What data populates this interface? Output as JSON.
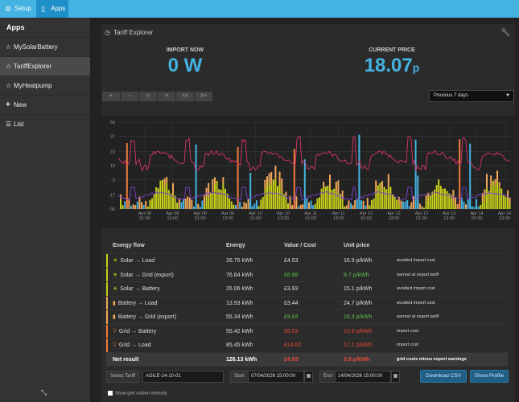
{
  "topbar": {
    "setup_label": "Setup",
    "apps_label": "Apps"
  },
  "sidebar": {
    "heading": "Apps",
    "items": [
      {
        "label": "MySolarBattery",
        "icon": "star-icon"
      },
      {
        "label": "TariffExplorer",
        "icon": "star-icon"
      },
      {
        "label": "MyHeatpump",
        "icon": "star-icon"
      },
      {
        "label": "New",
        "icon": "plus-icon"
      },
      {
        "label": "List",
        "icon": "list-icon"
      }
    ]
  },
  "header": {
    "title": "Tariff Explorer"
  },
  "stats": {
    "import_label": "IMPORT NOW",
    "import_value": "0 W",
    "price_label": "CURRENT PRICE",
    "price_value": "18.07",
    "price_unit": "p"
  },
  "nav_buttons": [
    "+",
    "-",
    "<",
    ">",
    "<<",
    ">>"
  ],
  "period_select": "Previous 7 days",
  "chart_data": {
    "type": "bar",
    "yticks": [
      50,
      37,
      23,
      10,
      -3,
      -17,
      -30
    ],
    "ylim": [
      -30,
      50
    ],
    "xticks": [
      {
        "day": "Apr 08",
        "time": "01:00"
      },
      {
        "day": "Apr 08",
        "time": "13:00"
      },
      {
        "day": "Apr 09",
        "time": "01:00"
      },
      {
        "day": "Apr 09",
        "time": "13:00"
      },
      {
        "day": "Apr 10",
        "time": "01:00"
      },
      {
        "day": "Apr 10",
        "time": "13:00"
      },
      {
        "day": "Apr 11",
        "time": "01:00"
      },
      {
        "day": "Apr 11",
        "time": "13:00"
      },
      {
        "day": "Apr 12",
        "time": "01:00"
      },
      {
        "day": "Apr 12",
        "time": "13:00"
      },
      {
        "day": "Apr 13",
        "time": "01:00"
      },
      {
        "day": "Apr 13",
        "time": "13:00"
      },
      {
        "day": "Apr 14",
        "time": "01:00"
      },
      {
        "day": "Apr 14",
        "time": "13:00"
      }
    ],
    "grid": true,
    "colors": {
      "import_price": "#d6336c",
      "export_price": "#7b3fc7",
      "solar": "#c8d11a",
      "battery": "#f2a859",
      "grid": "#f07a3c",
      "grid_battery": "#44b3e2"
    }
  },
  "table": {
    "headers": [
      "Energy flow",
      "Energy",
      "Value / Cost",
      "Unit price"
    ],
    "rows": [
      {
        "flow": "Solar → Load",
        "icon": "sun-icon",
        "color": "#c8d11a",
        "energy": "26.75 kWh",
        "value": "£4.53",
        "value_color": "#dddddd",
        "unit": "16.9 p/kWh",
        "unit_color": "#dddddd",
        "note": "avoided import cost"
      },
      {
        "flow": "Solar → Grid (export)",
        "icon": "sun-icon",
        "color": "#c8d11a",
        "energy": "76.64 kWh",
        "value": "£6.68",
        "value_color": "#5cc04a",
        "unit": "8.7 p/kWh",
        "unit_color": "#5cc04a",
        "note": "earned at export tariff"
      },
      {
        "flow": "Solar → Battery",
        "icon": "sun-icon",
        "color": "#c8d11a",
        "energy": "26.06 kWh",
        "value": "£3.93",
        "value_color": "#dddddd",
        "unit": "15.1 p/kWh",
        "unit_color": "#dddddd",
        "note": "avoided import cost"
      },
      {
        "flow": "Battery → Load",
        "icon": "battery-icon",
        "color": "#f2a859",
        "energy": "13.93 kWh",
        "value": "£3.44",
        "value_color": "#dddddd",
        "unit": "24.7 p/kWh",
        "unit_color": "#dddddd",
        "note": "avoided import cost"
      },
      {
        "flow": "Battery → Grid (export)",
        "icon": "battery-icon",
        "color": "#f2a859",
        "energy": "55.34 kWh",
        "value": "£9.04",
        "value_color": "#5cc04a",
        "unit": "16.3 p/kWh",
        "unit_color": "#5cc04a",
        "note": "earned at export tariff"
      },
      {
        "flow": "Grid → Battery",
        "icon": "bulb-icon",
        "color": "#f07a3c",
        "energy": "55.42 kWh",
        "value": "£6.03",
        "value_color": "#e84a3a",
        "unit": "10.9 p/kWh",
        "unit_color": "#e84a3a",
        "note": "import cost"
      },
      {
        "flow": "Grid → Load",
        "icon": "bulb-icon",
        "color": "#f07a3c",
        "energy": "85.45 kWh",
        "value": "£14.62",
        "value_color": "#e84a3a",
        "unit": "17.1 p/kWh",
        "unit_color": "#e84a3a",
        "note": "import cost"
      }
    ],
    "net": {
      "label": "Net result",
      "energy": "126.13 kWh",
      "value": "£4.93",
      "unit": "3.9 p/kWh",
      "note": "grid costs minus export earnings"
    }
  },
  "controls": {
    "tariff_label": "Select Tariff",
    "tariff_value": "AGILE-24-10-01",
    "start_label": "Start",
    "start_value": "07/04/2026 15:00:00",
    "end_label": "End",
    "end_value": "14/04/2026 15:00:00",
    "download_label": "Download CSV",
    "show_profile_label": "Show Profile",
    "carbon_label": "Show grid carbon intensity"
  }
}
